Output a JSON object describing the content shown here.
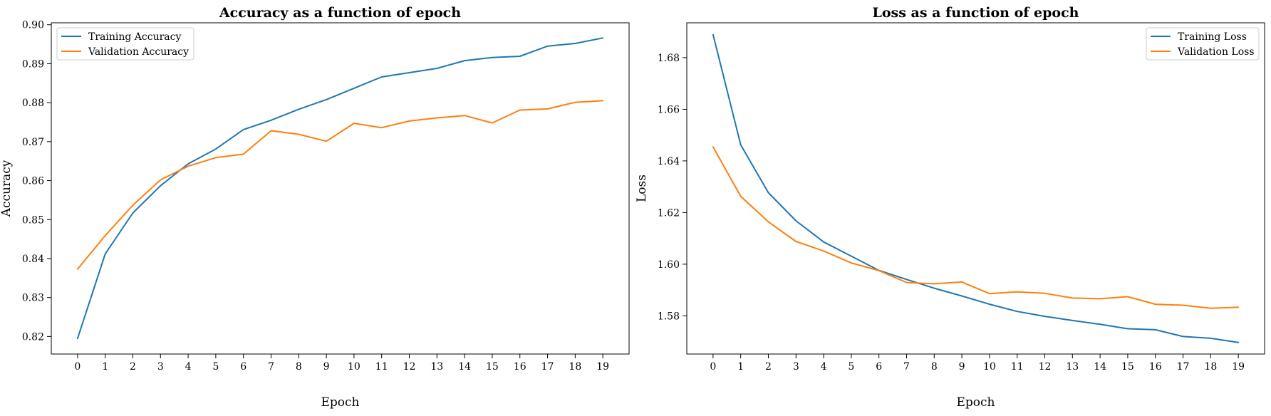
{
  "chart_data": [
    {
      "type": "line",
      "title": "Accuracy as a function of epoch",
      "xlabel": "Epoch",
      "ylabel": "Accuracy",
      "x": [
        0,
        1,
        2,
        3,
        4,
        5,
        6,
        7,
        8,
        9,
        10,
        11,
        12,
        13,
        14,
        15,
        16,
        17,
        18,
        19
      ],
      "xticks": [
        "0",
        "1",
        "2",
        "3",
        "4",
        "5",
        "6",
        "7",
        "8",
        "9",
        "10",
        "11",
        "12",
        "13",
        "14",
        "15",
        "16",
        "17",
        "18",
        "19"
      ],
      "xlim": [
        -0.95,
        19.95
      ],
      "ylim": [
        0.8155,
        0.9005
      ],
      "yticks": [
        {
          "value": 0.82,
          "label": "0.82"
        },
        {
          "value": 0.83,
          "label": "0.83"
        },
        {
          "value": 0.84,
          "label": "0.84"
        },
        {
          "value": 0.85,
          "label": "0.85"
        },
        {
          "value": 0.86,
          "label": "0.86"
        },
        {
          "value": 0.87,
          "label": "0.87"
        },
        {
          "value": 0.88,
          "label": "0.88"
        },
        {
          "value": 0.89,
          "label": "0.89"
        },
        {
          "value": 0.9,
          "label": "0.90"
        }
      ],
      "legend_position": "upper-left",
      "grid": false,
      "series": [
        {
          "name": "Training Accuracy",
          "color": "#1f77b4",
          "values": [
            0.8195,
            0.8412,
            0.8517,
            0.8587,
            0.8643,
            0.8681,
            0.8731,
            0.8755,
            0.8783,
            0.8808,
            0.8837,
            0.8866,
            0.8877,
            0.8888,
            0.8908,
            0.8916,
            0.8919,
            0.8945,
            0.8952,
            0.8966
          ]
        },
        {
          "name": "Validation Accuracy",
          "color": "#ff7f0e",
          "values": [
            0.8373,
            0.8459,
            0.8537,
            0.8602,
            0.8637,
            0.8659,
            0.8668,
            0.8728,
            0.8719,
            0.8701,
            0.8747,
            0.8736,
            0.8753,
            0.8761,
            0.8767,
            0.8748,
            0.8781,
            0.8784,
            0.8801,
            0.8805
          ]
        }
      ]
    },
    {
      "type": "line",
      "title": "Loss as a function of epoch",
      "xlabel": "Epoch",
      "ylabel": "Loss",
      "x": [
        0,
        1,
        2,
        3,
        4,
        5,
        6,
        7,
        8,
        9,
        10,
        11,
        12,
        13,
        14,
        15,
        16,
        17,
        18,
        19
      ],
      "xticks": [
        "0",
        "1",
        "2",
        "3",
        "4",
        "5",
        "6",
        "7",
        "8",
        "9",
        "10",
        "11",
        "12",
        "13",
        "14",
        "15",
        "16",
        "17",
        "18",
        "19"
      ],
      "xlim": [
        -0.95,
        19.95
      ],
      "ylim": [
        1.5652,
        1.6935
      ],
      "yticks": [
        {
          "value": 1.58,
          "label": "1.58"
        },
        {
          "value": 1.6,
          "label": "1.60"
        },
        {
          "value": 1.62,
          "label": "1.62"
        },
        {
          "value": 1.64,
          "label": "1.64"
        },
        {
          "value": 1.66,
          "label": "1.66"
        },
        {
          "value": 1.68,
          "label": "1.68"
        }
      ],
      "legend_position": "upper-right",
      "grid": false,
      "series": [
        {
          "name": "Training Loss",
          "color": "#1f77b4",
          "values": [
            1.6889,
            1.6462,
            1.6277,
            1.6168,
            1.6086,
            1.6031,
            1.5976,
            1.5941,
            1.5907,
            1.5877,
            1.5845,
            1.5817,
            1.5798,
            1.5782,
            1.5767,
            1.575,
            1.5746,
            1.572,
            1.5713,
            1.5697
          ]
        },
        {
          "name": "Validation Loss",
          "color": "#ff7f0e",
          "values": [
            1.6454,
            1.6263,
            1.6164,
            1.6088,
            1.6051,
            1.6005,
            1.5975,
            1.5929,
            1.5924,
            1.5931,
            1.5886,
            1.5893,
            1.5887,
            1.5869,
            1.5866,
            1.5874,
            1.5845,
            1.5841,
            1.5829,
            1.5833
          ]
        }
      ]
    }
  ]
}
